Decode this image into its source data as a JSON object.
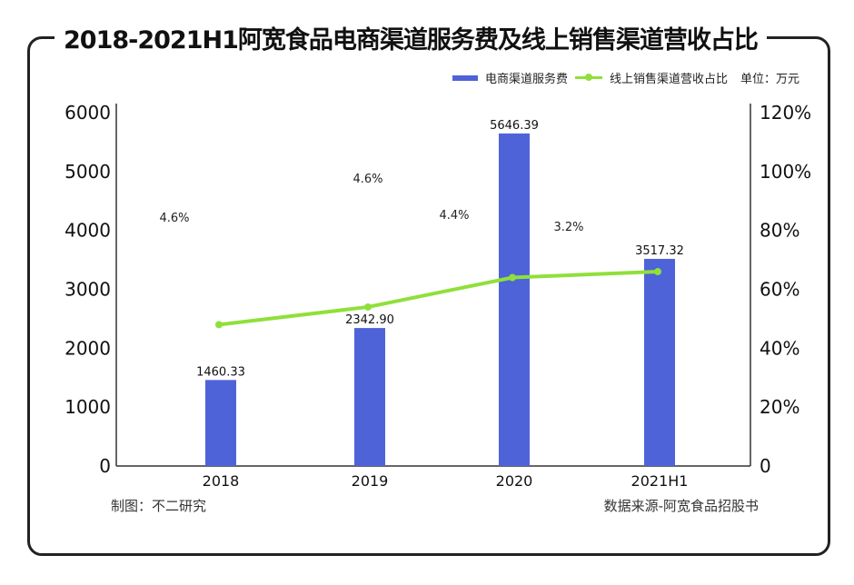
{
  "title": "2018-2021H1阿宽食品电商渠道服务费及线上销售渠道营收占比",
  "legend": {
    "bar": "电商渠道服务费",
    "line": "线上销售渠道营收占比",
    "unit": "单位：万元"
  },
  "footer": {
    "credit": "制图：不二研究",
    "source": "数据来源-阿宽食品招股书"
  },
  "chart_data": {
    "type": "bar",
    "categories": [
      "2018",
      "2019",
      "2020",
      "2021H1"
    ],
    "series": [
      {
        "name": "电商渠道服务费",
        "type": "bar",
        "axis": "left",
        "values": [
          1460.33,
          2342.9,
          5646.39,
          3517.32
        ],
        "labels": [
          "1460.33",
          "2342.90",
          "5646.39",
          "3517.32"
        ]
      },
      {
        "name": "线上销售渠道营收占比",
        "type": "line",
        "axis": "right",
        "values": [
          48,
          54,
          64,
          66
        ]
      }
    ],
    "annotations": [
      "4.6%",
      "4.6%",
      "4.4%",
      "3.2%"
    ],
    "left_axis": {
      "ylim": [
        0,
        6000
      ],
      "ticks": [
        "0",
        "1000",
        "2000",
        "3000",
        "4000",
        "5000",
        "6000"
      ]
    },
    "right_axis": {
      "ylim": [
        0,
        120
      ],
      "ticks": [
        "0",
        "20%",
        "40%",
        "60%",
        "80%",
        "100%",
        "120%"
      ]
    },
    "colors": {
      "bar": "#4f63d8",
      "line": "#8fe03a"
    }
  }
}
